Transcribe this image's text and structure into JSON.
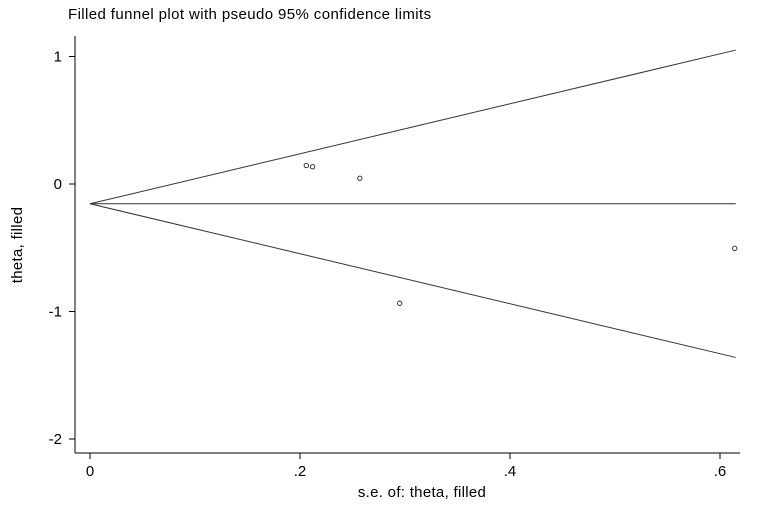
{
  "chart_data": {
    "type": "scatter",
    "title": "Filled funnel plot with pseudo 95% confidence limits",
    "xlabel": "s.e. of: theta, filled",
    "ylabel": "theta, filled",
    "xlim": [
      -0.017,
      0.62
    ],
    "ylim": [
      -2.1,
      1.1
    ],
    "xticks": [
      {
        "value": 0,
        "label": "0"
      },
      {
        "value": 0.2,
        "label": ".2"
      },
      {
        "value": 0.4,
        "label": ".4"
      },
      {
        "value": 0.6,
        "label": ".6"
      }
    ],
    "yticks": [
      {
        "value": 1,
        "label": "1"
      },
      {
        "value": 0,
        "label": "0"
      },
      {
        "value": -1,
        "label": "-1"
      },
      {
        "value": -2,
        "label": "-2"
      }
    ],
    "pooled_estimate": -0.155,
    "ci_multiplier": 1.96,
    "ci_x_max": 0.615,
    "points": [
      {
        "x": 0.206,
        "y": 0.145
      },
      {
        "x": 0.212,
        "y": 0.135
      },
      {
        "x": 0.257,
        "y": 0.045
      },
      {
        "x": 0.295,
        "y": -0.935
      },
      {
        "x": 0.614,
        "y": -0.505
      }
    ],
    "grid": false,
    "legend": "none"
  }
}
